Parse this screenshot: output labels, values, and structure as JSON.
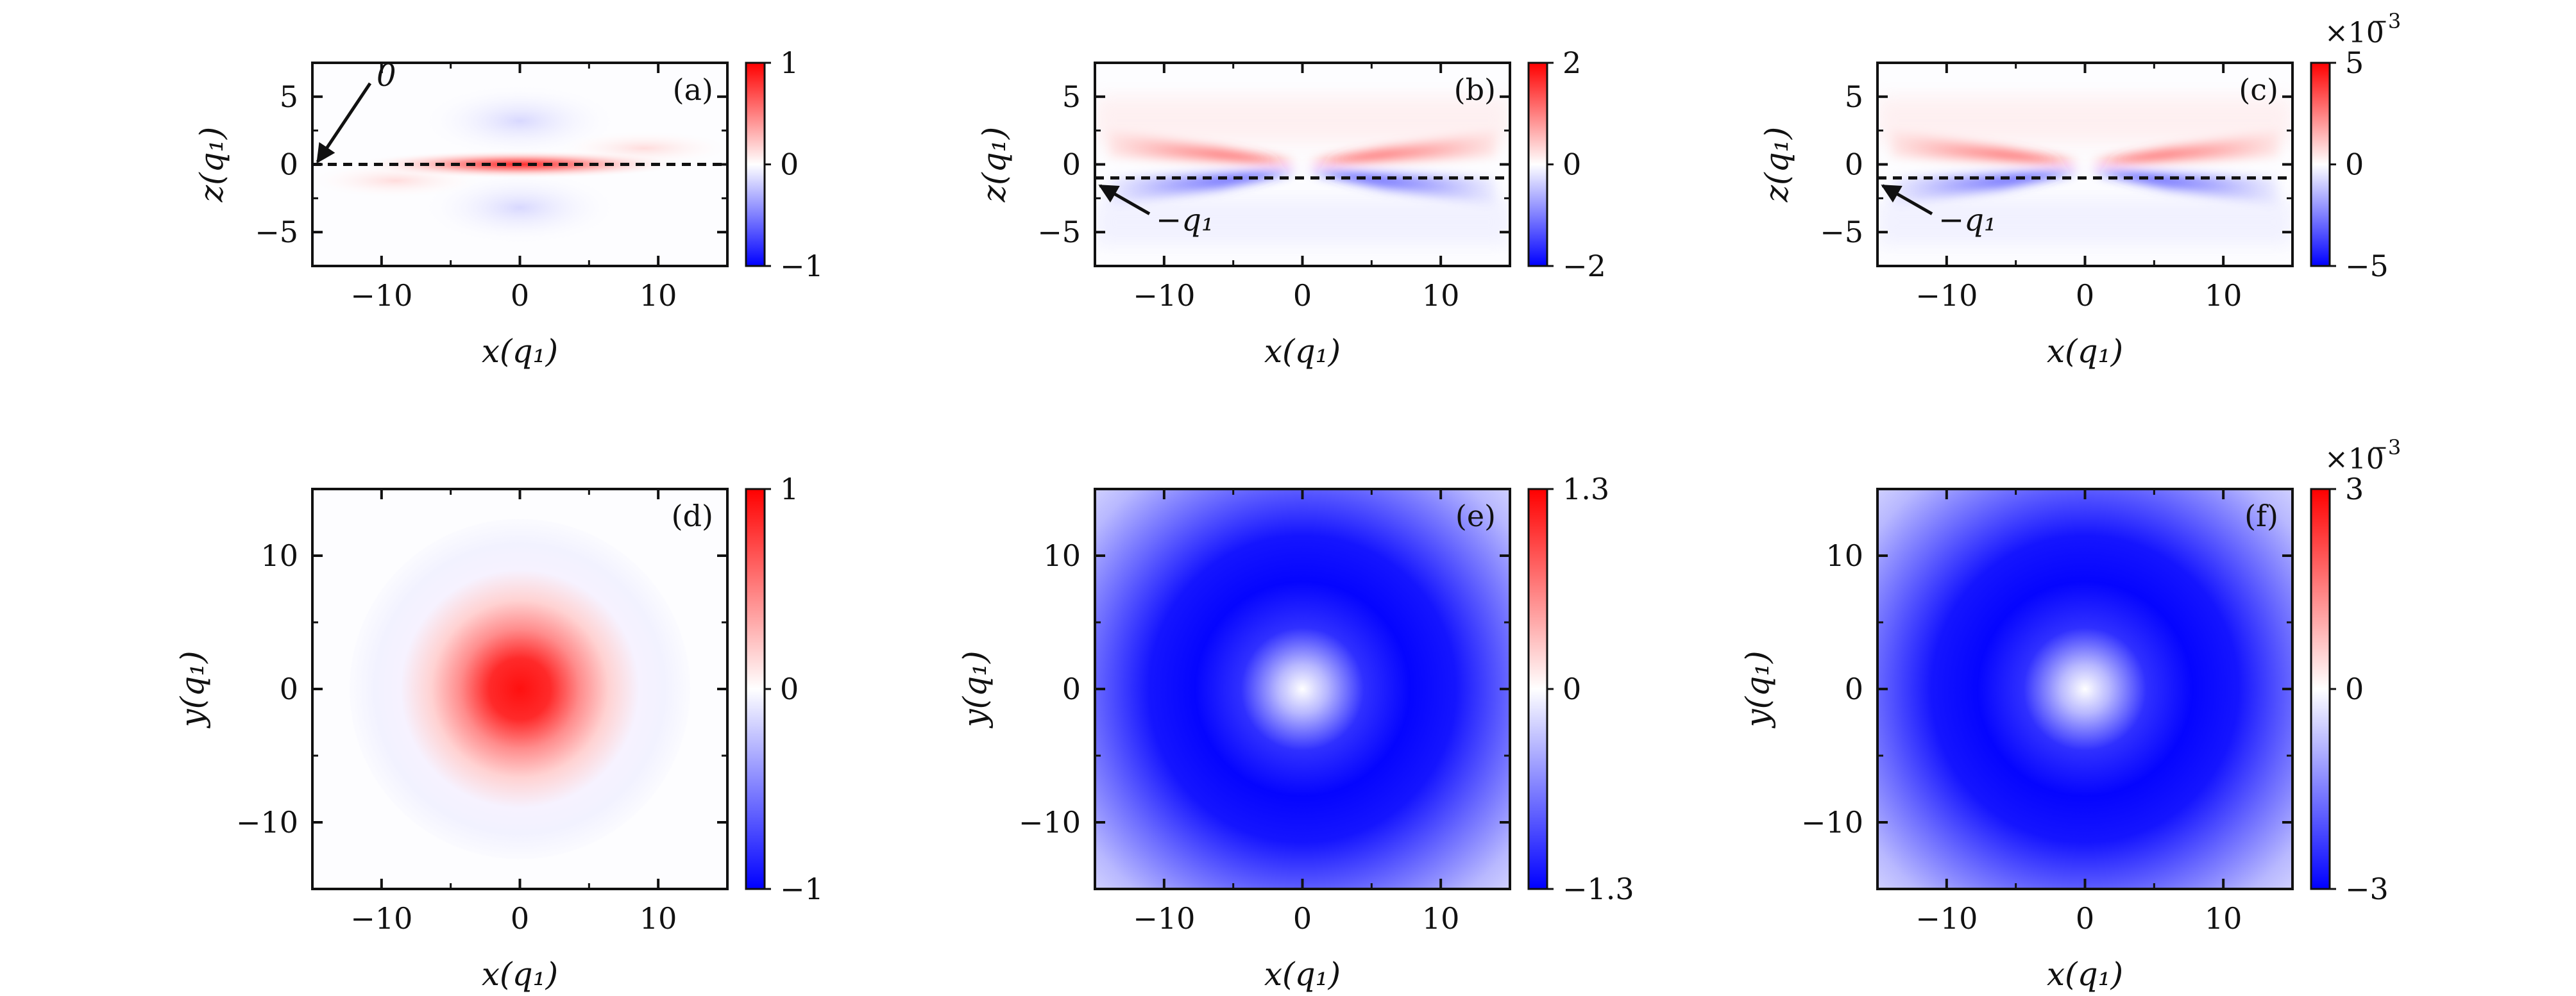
{
  "chart_data": [
    {
      "type": "heatmap",
      "panel": "(a)",
      "xlabel": "x(q₁)",
      "ylabel": "z(q₁)",
      "xlim": [
        -15,
        15
      ],
      "ylim": [
        -7.5,
        7.5
      ],
      "xticks": [
        "−10",
        "0",
        "10"
      ],
      "yticks": [
        "5",
        "0",
        "−5"
      ],
      "colorbar": {
        "min": -1,
        "max": 1,
        "ticks": [
          "1",
          "0",
          "−1"
        ],
        "exponent": ""
      },
      "colormap": [
        "#0000ff",
        "#ffffff",
        "#ff0000"
      ],
      "dashed_line_z": 0,
      "annotation": "0"
    },
    {
      "type": "heatmap",
      "panel": "(b)",
      "xlabel": "x(q₁)",
      "ylabel": "z(q₁)",
      "xlim": [
        -15,
        15
      ],
      "ylim": [
        -7.5,
        7.5
      ],
      "xticks": [
        "−10",
        "0",
        "10"
      ],
      "yticks": [
        "5",
        "0",
        "−5"
      ],
      "colorbar": {
        "min": -2,
        "max": 2,
        "ticks": [
          "2",
          "0",
          "−2"
        ],
        "exponent": ""
      },
      "colormap": [
        "#0000ff",
        "#ffffff",
        "#ff0000"
      ],
      "dashed_line_z": -1,
      "annotation": "−q₁"
    },
    {
      "type": "heatmap",
      "panel": "(c)",
      "xlabel": "x(q₁)",
      "ylabel": "z(q₁)",
      "xlim": [
        -15,
        15
      ],
      "ylim": [
        -7.5,
        7.5
      ],
      "xticks": [
        "−10",
        "0",
        "10"
      ],
      "yticks": [
        "5",
        "0",
        "−5"
      ],
      "colorbar": {
        "min": -5,
        "max": 5,
        "ticks": [
          "5",
          "0",
          "−5"
        ],
        "exponent": "−3"
      },
      "colormap": [
        "#0000ff",
        "#ffffff",
        "#ff0000"
      ],
      "dashed_line_z": -1,
      "annotation": "−q₁"
    },
    {
      "type": "heatmap",
      "panel": "(d)",
      "xlabel": "x(q₁)",
      "ylabel": "y(q₁)",
      "xlim": [
        -15,
        15
      ],
      "ylim": [
        -15,
        15
      ],
      "xticks": [
        "−10",
        "0",
        "10"
      ],
      "yticks": [
        "10",
        "0",
        "−10"
      ],
      "colorbar": {
        "min": -1,
        "max": 1,
        "ticks": [
          "1",
          "0",
          "−1"
        ],
        "exponent": ""
      },
      "colormap": [
        "#0000ff",
        "#ffffff",
        "#ff0000"
      ]
    },
    {
      "type": "heatmap",
      "panel": "(e)",
      "xlabel": "x(q₁)",
      "ylabel": "y(q₁)",
      "xlim": [
        -15,
        15
      ],
      "ylim": [
        -15,
        15
      ],
      "xticks": [
        "−10",
        "0",
        "10"
      ],
      "yticks": [
        "10",
        "0",
        "−10"
      ],
      "colorbar": {
        "min": -1.3,
        "max": 1.3,
        "ticks": [
          "1.3",
          "0",
          "−1.3"
        ],
        "exponent": ""
      },
      "colormap": [
        "#0000ff",
        "#ffffff",
        "#ff0000"
      ]
    },
    {
      "type": "heatmap",
      "panel": "(f)",
      "xlabel": "x(q₁)",
      "ylabel": "y(q₁)",
      "xlim": [
        -15,
        15
      ],
      "ylim": [
        -15,
        15
      ],
      "xticks": [
        "−10",
        "0",
        "10"
      ],
      "yticks": [
        "10",
        "0",
        "−10"
      ],
      "colorbar": {
        "min": -3,
        "max": 3,
        "ticks": [
          "3",
          "0",
          "−3"
        ],
        "exponent": "−3"
      },
      "colormap": [
        "#0000ff",
        "#ffffff",
        "#ff0000"
      ]
    }
  ]
}
